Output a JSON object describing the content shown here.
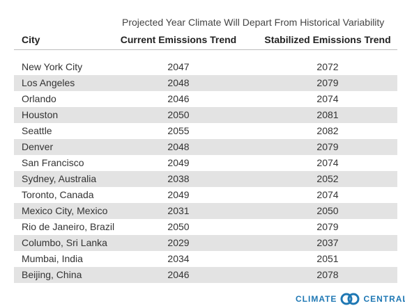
{
  "chart_data": {
    "type": "table",
    "title": "Projected Year Climate Will Depart From Historical Variability",
    "columns": [
      "City",
      "Current Emissions Trend",
      "Stabilized Emissions Trend"
    ],
    "rows": [
      {
        "city": "New York City",
        "current": "2047",
        "stabilized": "2072"
      },
      {
        "city": "Los Angeles",
        "current": "2048",
        "stabilized": "2079"
      },
      {
        "city": "Orlando",
        "current": "2046",
        "stabilized": "2074"
      },
      {
        "city": "Houston",
        "current": "2050",
        "stabilized": "2081"
      },
      {
        "city": "Seattle",
        "current": "2055",
        "stabilized": "2082"
      },
      {
        "city": "Denver",
        "current": "2048",
        "stabilized": "2079"
      },
      {
        "city": "San Francisco",
        "current": "2049",
        "stabilized": "2074"
      },
      {
        "city": "Sydney, Australia",
        "current": "2038",
        "stabilized": "2052"
      },
      {
        "city": "Toronto, Canada",
        "current": "2049",
        "stabilized": "2074"
      },
      {
        "city": "Mexico City, Mexico",
        "current": "2031",
        "stabilized": "2050"
      },
      {
        "city": "Rio de Janeiro, Brazil",
        "current": "2050",
        "stabilized": "2079"
      },
      {
        "city": "Columbo, Sri Lanka",
        "current": "2029",
        "stabilized": "2037"
      },
      {
        "city": "Mumbai, India",
        "current": "2034",
        "stabilized": "2051"
      },
      {
        "city": "Beijing, China",
        "current": "2046",
        "stabilized": "2078"
      }
    ],
    "row_shading": "alternating"
  },
  "logo": {
    "left_text": "CLIMATE",
    "right_text": "CENTRAL",
    "icon": "climate-central-logo-icon",
    "color": "#1f78b4"
  }
}
